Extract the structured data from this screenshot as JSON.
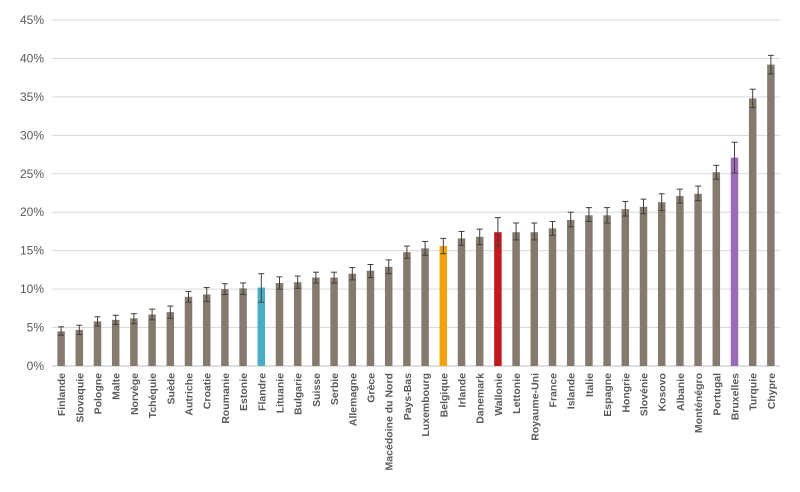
{
  "chart_data": {
    "type": "bar",
    "title": "",
    "xlabel": "",
    "ylabel": "",
    "ylim": [
      0,
      45
    ],
    "yticks": [
      0,
      5,
      10,
      15,
      20,
      25,
      30,
      35,
      40,
      45
    ],
    "ytick_labels": [
      "0%",
      "5%",
      "10%",
      "15%",
      "20%",
      "25%",
      "30%",
      "35%",
      "40%",
      "45%"
    ],
    "grid": true,
    "legend": "none",
    "error_bars": true,
    "colors": {
      "default": "#857a6e",
      "Flandre": "#4bacc6",
      "Belgique": "#f0a30a",
      "Wallonie": "#c0191f",
      "Bruxelles": "#9b6bb5",
      "grid": "#d9d9d9",
      "errorbar": "#3f3f3f"
    },
    "categories": [
      "Finlande",
      "Slovaquie",
      "Pologne",
      "Malte",
      "Norvège",
      "Tchéquie",
      "Suède",
      "Autriche",
      "Croatie",
      "Roumanie",
      "Estonie",
      "Flandre",
      "Lituanie",
      "Bulgarie",
      "Suisse",
      "Serbie",
      "Allemagne",
      "Grèce",
      "Macédoine du Nord",
      "Pays-Bas",
      "Luxembourg",
      "Belgique",
      "Irlande",
      "Danemark",
      "Wallonie",
      "Lettonie",
      "Royaume-Uni",
      "France",
      "Islande",
      "Italie",
      "Espagne",
      "Hongrie",
      "Slovénie",
      "Kosovo",
      "Albanie",
      "Monténégro",
      "Portugal",
      "Bruxelles",
      "Turquie",
      "Chypre"
    ],
    "values": [
      4.5,
      4.7,
      5.8,
      6.0,
      6.2,
      6.7,
      7.0,
      9.0,
      9.3,
      10.0,
      10.1,
      10.2,
      10.8,
      10.9,
      11.5,
      11.5,
      12.0,
      12.4,
      12.9,
      14.8,
      15.3,
      15.6,
      16.6,
      16.8,
      17.4,
      17.4,
      17.4,
      17.9,
      19.0,
      19.6,
      19.6,
      20.4,
      20.7,
      21.3,
      22.1,
      22.4,
      25.2,
      27.1,
      34.8,
      39.2
    ],
    "error_low": [
      4.0,
      4.1,
      5.2,
      5.4,
      5.5,
      6.0,
      6.2,
      8.3,
      8.4,
      9.3,
      9.3,
      8.3,
      10.0,
      10.1,
      10.8,
      10.8,
      11.2,
      11.5,
      12.0,
      14.0,
      14.4,
      14.6,
      15.7,
      15.8,
      15.6,
      16.4,
      16.4,
      17.0,
      18.1,
      18.8,
      18.6,
      19.5,
      19.8,
      20.2,
      21.2,
      21.5,
      24.3,
      25.1,
      33.6,
      38.0
    ],
    "error_high": [
      5.1,
      5.3,
      6.4,
      6.6,
      6.8,
      7.4,
      7.8,
      9.7,
      10.2,
      10.7,
      10.8,
      12.0,
      11.6,
      11.7,
      12.2,
      12.2,
      12.8,
      13.2,
      13.8,
      15.6,
      16.2,
      16.6,
      17.5,
      17.8,
      19.3,
      18.6,
      18.6,
      18.8,
      20.0,
      20.6,
      20.6,
      21.4,
      21.7,
      22.4,
      23.0,
      23.4,
      26.1,
      29.1,
      36.0,
      40.4
    ]
  }
}
